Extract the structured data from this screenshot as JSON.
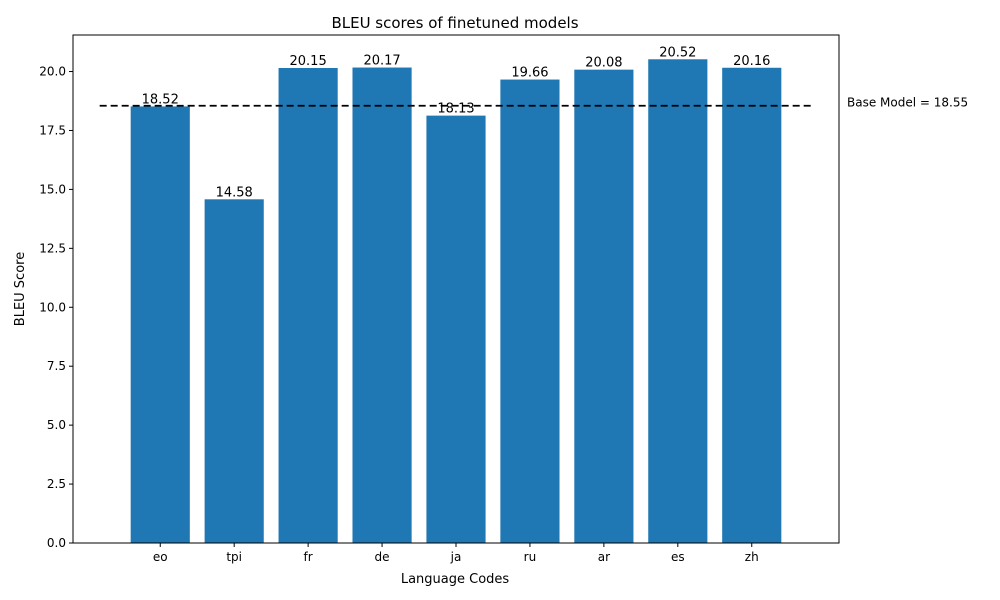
{
  "chart_data": {
    "type": "bar",
    "title": "BLEU scores of finetuned models",
    "xlabel": "Language Codes",
    "ylabel": "BLEU Score",
    "categories": [
      "eo",
      "tpi",
      "fr",
      "de",
      "ja",
      "ru",
      "ar",
      "es",
      "zh"
    ],
    "values": [
      18.52,
      14.58,
      20.15,
      20.17,
      18.13,
      19.66,
      20.08,
      20.52,
      20.16
    ],
    "data_labels": [
      "18.52",
      "14.58",
      "20.15",
      "20.17",
      "18.13",
      "19.66",
      "20.08",
      "20.52",
      "20.16"
    ],
    "ylim": [
      0,
      21.55
    ],
    "yticks": [
      "0.0",
      "2.5",
      "5.0",
      "7.5",
      "10.0",
      "12.5",
      "15.0",
      "17.5",
      "20.0"
    ],
    "bar_color": "#1f77b4",
    "grid": false,
    "reference_line": {
      "value": 18.55,
      "label": "Base Model = 18.55",
      "style": "dashed",
      "color": "#000000"
    }
  }
}
